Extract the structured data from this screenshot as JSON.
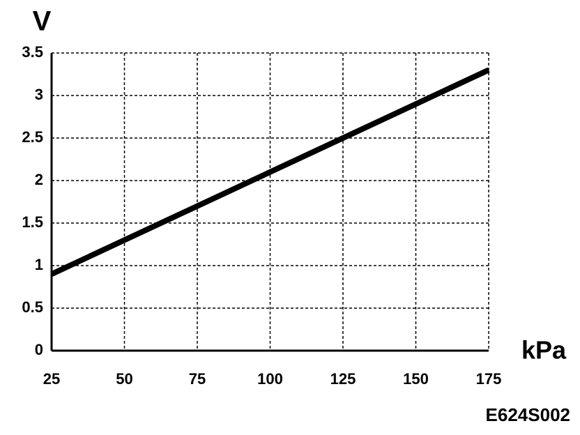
{
  "chart_data": {
    "type": "line",
    "y_label": "V",
    "x_label": "kPa",
    "annotation": "E624S002",
    "x": [
      25,
      50,
      75,
      100,
      125,
      150,
      175
    ],
    "series": [
      {
        "color": "#000000",
        "values": [
          0.9,
          1.3,
          1.7,
          2.1,
          2.5,
          2.9,
          3.3
        ]
      }
    ],
    "xlim": [
      25,
      175
    ],
    "xticks": [
      25,
      50,
      75,
      100,
      125,
      150,
      175
    ],
    "ylim": [
      0,
      3.5
    ],
    "yticks": [
      0,
      0.5,
      1,
      1.5,
      2,
      2.5,
      3,
      3.5
    ],
    "grid": true
  }
}
